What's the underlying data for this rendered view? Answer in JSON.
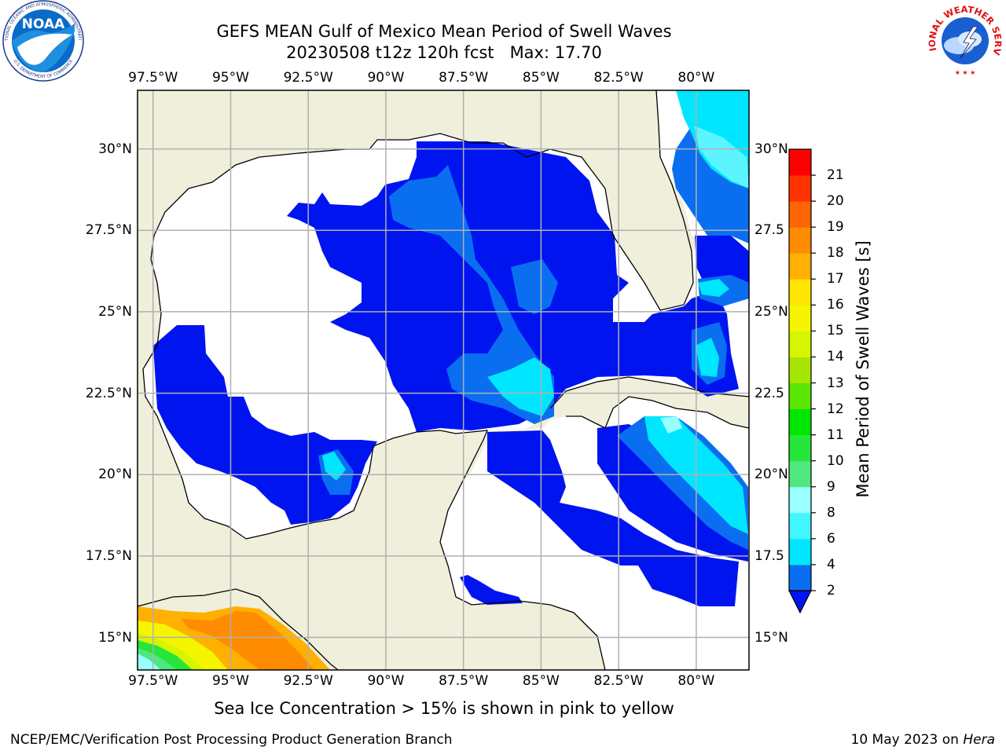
{
  "title_line1": "GEFS MEAN Gulf of Mexico Mean Period of Swell Waves",
  "title_line2": "20230508 t12z 120h fcst   Max: 17.70",
  "lon_ticks": [
    "97.5°W",
    "95°W",
    "92.5°W",
    "90°W",
    "87.5°W",
    "85°W",
    "82.5°W",
    "80°W"
  ],
  "lon_values": [
    -97.5,
    -95,
    -92.5,
    -90,
    -87.5,
    -85,
    -82.5,
    -80
  ],
  "lat_ticks_left": [
    "30°N",
    "27.5°N",
    "25°N",
    "22.5°N",
    "20°N",
    "17.5°N",
    "15°N"
  ],
  "lat_ticks_right": [
    "30°N",
    "27.5",
    "25°N",
    "22.5",
    "20°N",
    "17.5",
    "15°N"
  ],
  "lat_values": [
    30,
    27.5,
    25,
    22.5,
    20,
    17.5,
    15
  ],
  "map_extent": {
    "lon_min": -98,
    "lon_max": -78.3,
    "lat_min": 14,
    "lat_max": 31.8
  },
  "colorbar": {
    "label": "Mean Period of Swell Waves [s]",
    "ticks": [
      "2",
      "4",
      "6",
      "8",
      "9",
      "10",
      "11",
      "12",
      "13",
      "14",
      "15",
      "16",
      "17",
      "18",
      "19",
      "20",
      "21"
    ],
    "colors": [
      "#0a6ef0",
      "#00e6ff",
      "#40f6ff",
      "#99ffff",
      "#4fe880",
      "#26e63c",
      "#00e600",
      "#5ae600",
      "#a6e600",
      "#d6f500",
      "#f5f500",
      "#ffe600",
      "#ffb000",
      "#ff8c00",
      "#ff6400",
      "#ff3200",
      "#ff0000"
    ],
    "under_color": "#0014f0",
    "extend": "min"
  },
  "colors": {
    "land": "#efefdc",
    "ocean_blank": "#ffffff",
    "gridline": "#b0b0b0",
    "coast": "#000000"
  },
  "note": "Sea Ice Concentration > 15% is shown in pink to yellow",
  "footer_left": "NCEP/EMC/Verification Post Processing Product Generation Branch",
  "footer_right_date": "10 May 2023 on",
  "footer_right_host": "Hera",
  "logos": {
    "left": {
      "icon": "noaa-logo",
      "text": "NOAA",
      "ring_top": "NATIONAL OCEANIC AND ATMOSPHERIC ADMINISTRATION",
      "ring_bottom": "U.S. DEPARTMENT OF COMMERCE"
    },
    "right": {
      "icon": "nws-logo",
      "ring_text": "NATIONAL WEATHER SERVICE"
    }
  }
}
